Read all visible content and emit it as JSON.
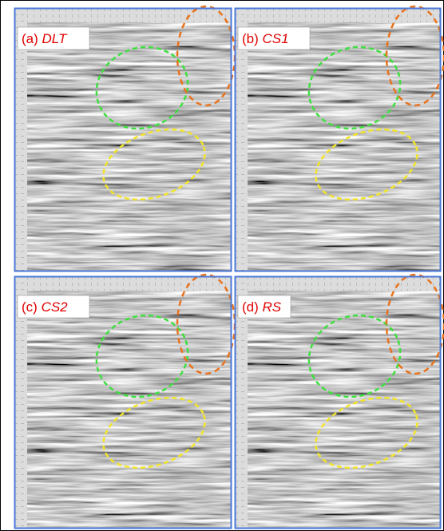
{
  "panels": [
    {
      "prefix": "(a)",
      "name": "DLT"
    },
    {
      "prefix": "(b)",
      "name": "CS1"
    },
    {
      "prefix": "(c)",
      "name": "CS2"
    },
    {
      "prefix": "(d)",
      "name": "RS"
    }
  ]
}
